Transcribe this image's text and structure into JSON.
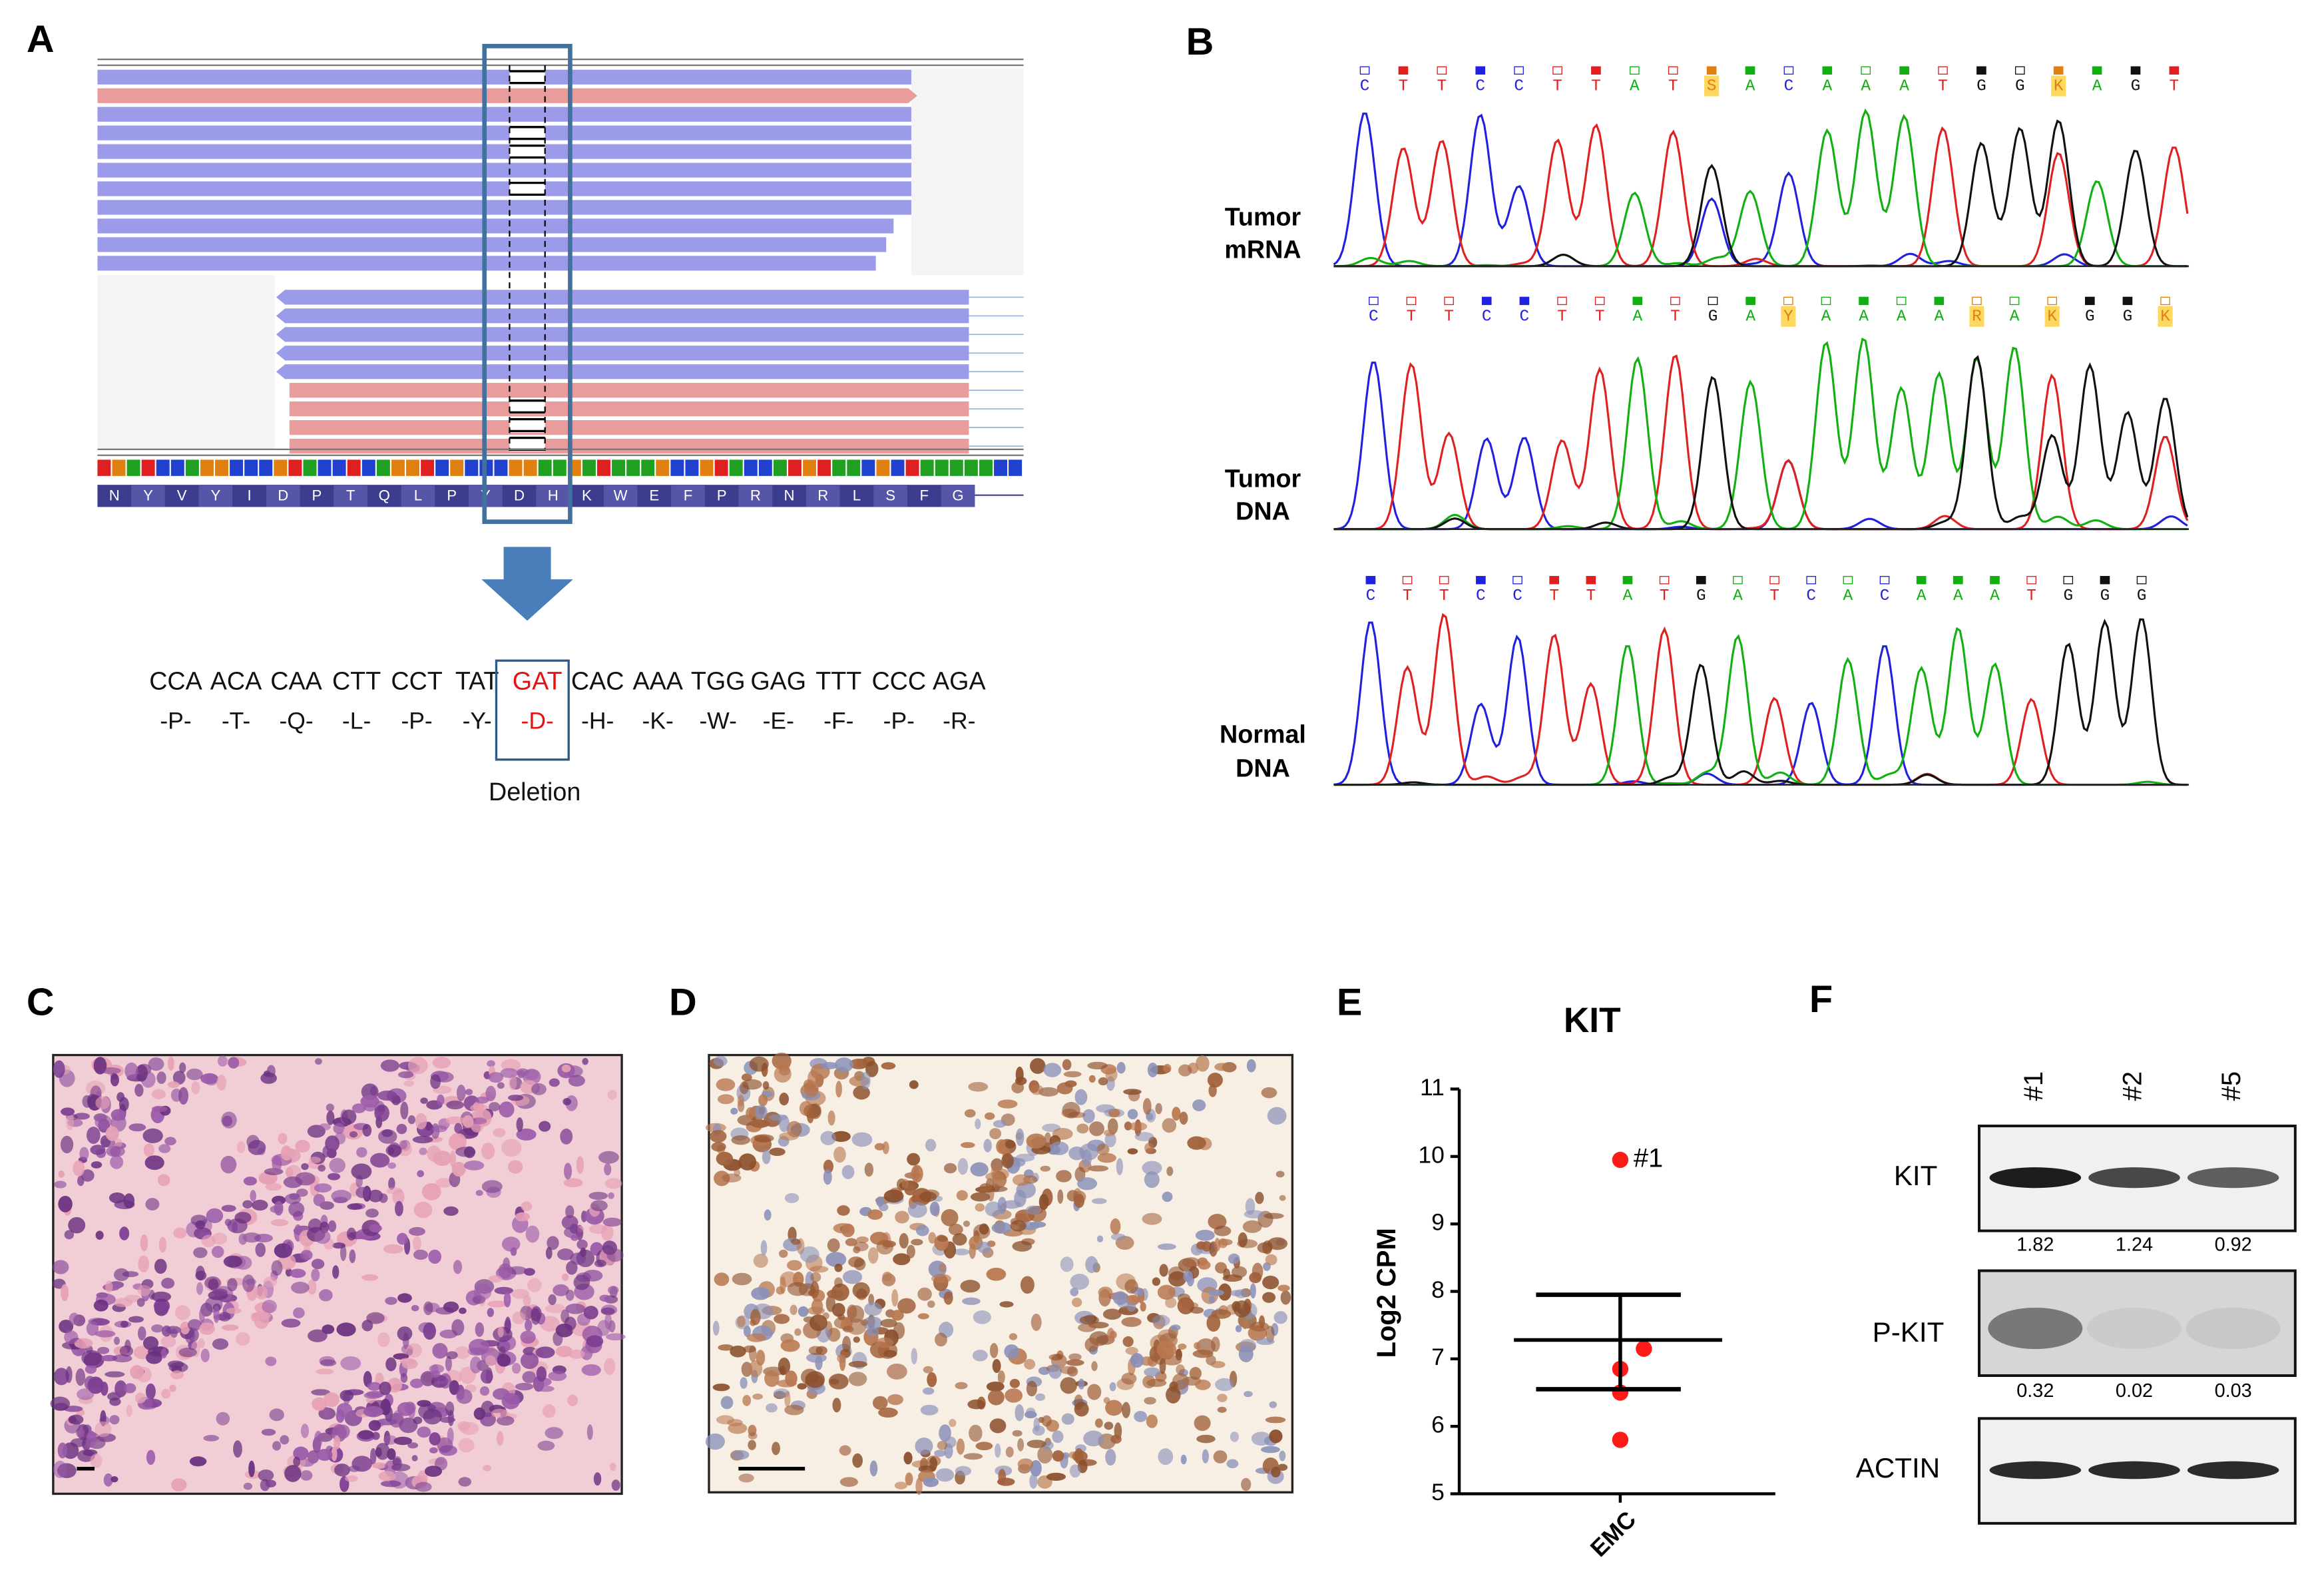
{
  "figure": {
    "panel_labels": [
      "A",
      "B",
      "C",
      "D",
      "E",
      "F"
    ],
    "panel_a": {
      "amino_acids": [
        "N",
        "Y",
        "V",
        "Y",
        "I",
        "D",
        "P",
        "T",
        "Q",
        "L",
        "P",
        "Y",
        "D",
        "H",
        "K",
        "W",
        "E",
        "F",
        "P",
        "R",
        "N",
        "R",
        "L",
        "S",
        "F",
        "G"
      ],
      "codons": [
        "CCA",
        "ACA",
        "CAA",
        "CTT",
        "CCT",
        "TAT",
        "GAT",
        "CAC",
        "AAA",
        "TGG",
        "GAG",
        "TTT",
        "CCC",
        "AGA"
      ],
      "residues": [
        "-P-",
        "-T-",
        "-Q-",
        "-L-",
        "-P-",
        "-Y-",
        "-D-",
        "-H-",
        "-K-",
        "-W-",
        "-E-",
        "-F-",
        "-P-",
        "-R-"
      ],
      "deletion_label": "Deletion"
    },
    "panel_b": {
      "traces": [
        {
          "label": [
            "Tumor",
            "mRNA"
          ],
          "bases": [
            "C",
            "T",
            "T",
            "C",
            "C",
            "T",
            "T",
            "A",
            "T",
            "S",
            "A",
            "C",
            "A",
            "A",
            "A",
            "T",
            "G",
            "G",
            "K",
            "A",
            "G",
            "T"
          ]
        },
        {
          "label": [
            "Tumor",
            "DNA"
          ],
          "bases": [
            "C",
            "T",
            "T",
            "C",
            "C",
            "T",
            "T",
            "A",
            "T",
            "G",
            "A",
            "Y",
            "A",
            "A",
            "A",
            "A",
            "R",
            "A",
            "K",
            "G",
            "G",
            "K"
          ]
        },
        {
          "label": [
            "Normal",
            "DNA"
          ],
          "bases": [
            "C",
            "T",
            "T",
            "C",
            "C",
            "T",
            "T",
            "A",
            "T",
            "G",
            "A",
            "T",
            "C",
            "A",
            "C",
            "A",
            "A",
            "A",
            "T",
            "G",
            "G",
            "G"
          ]
        }
      ]
    },
    "panel_f": {
      "lanes": [
        "#1",
        "#2",
        "#5"
      ],
      "blots": [
        {
          "label": "KIT",
          "values": [
            1.82,
            1.24,
            0.92
          ]
        },
        {
          "label": "P-KIT",
          "values": [
            0.32,
            0.02,
            0.03
          ]
        },
        {
          "label": "ACTIN"
        }
      ]
    }
  },
  "chart_data": {
    "type": "scatter",
    "title": "KIT",
    "y_label": "Log2 CPM",
    "categories": [
      "EMC"
    ],
    "values": [
      9.95,
      7.15,
      6.85,
      6.5,
      5.8
    ],
    "annotation": "#1",
    "summary": {
      "center": 7.28,
      "upper": 7.95,
      "lower": 6.55
    },
    "ylim": [
      5,
      11
    ],
    "yticks": [
      5,
      6,
      7,
      8,
      9,
      10,
      11
    ],
    "color": "#ff1a1a"
  }
}
